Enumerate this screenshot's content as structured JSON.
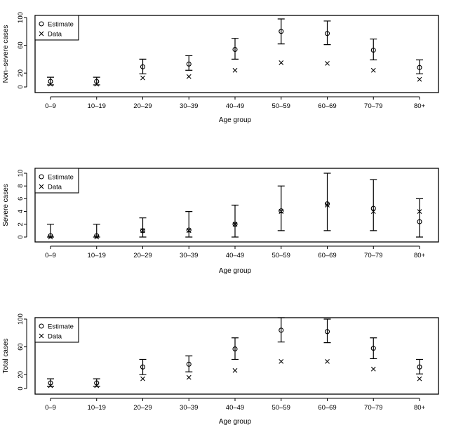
{
  "chart_data": [
    {
      "type": "scatter",
      "title": "",
      "xlabel": "Age group",
      "ylabel": "Non–severe cases",
      "categories": [
        "0–9",
        "10–19",
        "20–29",
        "30–39",
        "40–49",
        "50–59",
        "60–69",
        "70–79",
        "80+"
      ],
      "yticks": [
        0,
        20,
        60,
        100
      ],
      "ylim": [
        0,
        100
      ],
      "legend": {
        "placement": "top-left",
        "entries": [
          "Estimate",
          "Data"
        ]
      },
      "series": [
        {
          "name": "Estimate",
          "values": [
            8,
            8,
            29,
            33,
            54,
            80,
            77,
            53,
            28
          ],
          "lower": [
            3,
            3,
            19,
            24,
            40,
            62,
            61,
            39,
            19
          ],
          "upper": [
            14,
            14,
            40,
            45,
            70,
            98,
            95,
            69,
            39
          ]
        },
        {
          "name": "Data",
          "values": [
            4,
            4,
            13,
            15,
            24,
            35,
            34,
            24,
            11
          ]
        }
      ]
    },
    {
      "type": "scatter",
      "title": "",
      "xlabel": "Age group",
      "ylabel": "Severe cases",
      "categories": [
        "0–9",
        "10–19",
        "20–29",
        "30–39",
        "40–49",
        "50–59",
        "60–69",
        "70–79",
        "80+"
      ],
      "yticks": [
        0,
        2,
        4,
        6,
        8,
        10
      ],
      "ylim": [
        0,
        10
      ],
      "legend": {
        "placement": "top-left",
        "entries": [
          "Estimate",
          "Data"
        ]
      },
      "series": [
        {
          "name": "Estimate",
          "values": [
            0.2,
            0.2,
            1.0,
            1.1,
            2.0,
            4.1,
            5.2,
            4.5,
            2.4
          ],
          "lower": [
            0,
            0,
            0,
            0,
            0,
            1,
            1,
            1,
            0
          ],
          "upper": [
            2,
            2,
            3,
            4,
            5,
            8,
            10,
            9,
            6
          ]
        },
        {
          "name": "Data",
          "values": [
            0,
            0,
            1,
            1,
            2,
            4,
            5,
            4,
            4
          ]
        }
      ]
    },
    {
      "type": "scatter",
      "title": "",
      "xlabel": "Age group",
      "ylabel": "Total cases",
      "categories": [
        "0–9",
        "10–19",
        "20–29",
        "30–39",
        "40–49",
        "50–59",
        "60–69",
        "70–79",
        "80+"
      ],
      "yticks": [
        0,
        20,
        60,
        100
      ],
      "ylim": [
        0,
        100
      ],
      "legend": {
        "placement": "top-left",
        "entries": [
          "Estimate",
          "Data"
        ]
      },
      "series": [
        {
          "name": "Estimate",
          "values": [
            8,
            8,
            31,
            35,
            57,
            84,
            82,
            58,
            31
          ],
          "lower": [
            3,
            3,
            20,
            24,
            42,
            67,
            66,
            43,
            21
          ],
          "upper": [
            14,
            14,
            42,
            47,
            73,
            102,
            100,
            73,
            42
          ]
        },
        {
          "name": "Data",
          "values": [
            4,
            4,
            14,
            16,
            26,
            39,
            39,
            28,
            14
          ]
        }
      ]
    }
  ]
}
